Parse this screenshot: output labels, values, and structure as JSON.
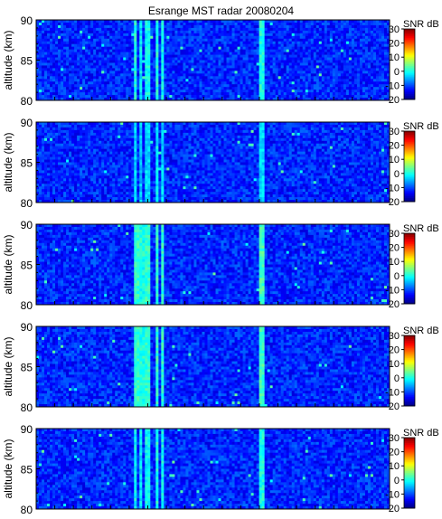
{
  "chart_data": [
    {
      "type": "heatmap",
      "title": "Esrange MST radar 20080204",
      "ylabel": "altitude (km)",
      "ylim": [
        80,
        90
      ],
      "yticks": [
        80,
        85,
        90
      ],
      "colorbar": {
        "label": "SNR dB",
        "range": [
          -20,
          30
        ],
        "ticks": [
          30,
          20,
          10,
          0,
          -10,
          -20
        ]
      },
      "background_snr_db": -12,
      "enhanced_bands": [
        {
          "x_fraction": [
            0.275,
            0.285
          ],
          "snr_db": 0
        },
        {
          "x_fraction": [
            0.29,
            0.3
          ],
          "snr_db": -2
        },
        {
          "x_fraction": [
            0.31,
            0.32
          ],
          "snr_db": -1
        },
        {
          "x_fraction": [
            0.335,
            0.345
          ],
          "snr_db": 0
        },
        {
          "x_fraction": [
            0.355,
            0.365
          ],
          "snr_db": -1
        },
        {
          "x_fraction": [
            0.63,
            0.645
          ],
          "snr_db": 0
        }
      ]
    },
    {
      "type": "heatmap",
      "ylabel": "altitude (km)",
      "ylim": [
        80,
        90
      ],
      "yticks": [
        80,
        85,
        90
      ],
      "colorbar": {
        "label": "SNR dB",
        "range": [
          -20,
          30
        ],
        "ticks": [
          30,
          20,
          10,
          0,
          -10,
          -20
        ]
      },
      "background_snr_db": -12,
      "enhanced_bands": [
        {
          "x_fraction": [
            0.275,
            0.285
          ],
          "snr_db": -3
        },
        {
          "x_fraction": [
            0.29,
            0.3
          ],
          "snr_db": -4
        },
        {
          "x_fraction": [
            0.31,
            0.32
          ],
          "snr_db": -3
        },
        {
          "x_fraction": [
            0.335,
            0.345
          ],
          "snr_db": -2
        },
        {
          "x_fraction": [
            0.355,
            0.365
          ],
          "snr_db": -3
        },
        {
          "x_fraction": [
            0.63,
            0.645
          ],
          "snr_db": -3
        }
      ]
    },
    {
      "type": "heatmap",
      "ylabel": "altitude (km)",
      "ylim": [
        80,
        90
      ],
      "yticks": [
        80,
        85,
        90
      ],
      "colorbar": {
        "label": "SNR dB",
        "range": [
          -20,
          30
        ],
        "ticks": [
          30,
          20,
          10,
          0,
          -10,
          -20
        ]
      },
      "background_snr_db": -12,
      "enhanced_bands": [
        {
          "x_fraction": [
            0.275,
            0.29
          ],
          "snr_db": 1
        },
        {
          "x_fraction": [
            0.295,
            0.305
          ],
          "snr_db": 0
        },
        {
          "x_fraction": [
            0.31,
            0.325
          ],
          "snr_db": 1
        },
        {
          "x_fraction": [
            0.335,
            0.345
          ],
          "snr_db": 1
        },
        {
          "x_fraction": [
            0.355,
            0.365
          ],
          "snr_db": 1
        },
        {
          "x_fraction": [
            0.63,
            0.645
          ],
          "snr_db": 2
        }
      ]
    },
    {
      "type": "heatmap",
      "ylabel": "altitude (km)",
      "ylim": [
        80,
        90
      ],
      "yticks": [
        80,
        85,
        90
      ],
      "colorbar": {
        "label": "SNR dB",
        "range": [
          -20,
          30
        ],
        "ticks": [
          30,
          20,
          10,
          0,
          -10,
          -20
        ]
      },
      "background_snr_db": -12,
      "enhanced_bands": [
        {
          "x_fraction": [
            0.275,
            0.29
          ],
          "snr_db": 1
        },
        {
          "x_fraction": [
            0.295,
            0.305
          ],
          "snr_db": 0
        },
        {
          "x_fraction": [
            0.31,
            0.325
          ],
          "snr_db": 1
        },
        {
          "x_fraction": [
            0.335,
            0.345
          ],
          "snr_db": 1
        },
        {
          "x_fraction": [
            0.355,
            0.365
          ],
          "snr_db": 1
        },
        {
          "x_fraction": [
            0.63,
            0.645
          ],
          "snr_db": 2
        }
      ]
    },
    {
      "type": "heatmap",
      "ylabel": "altitude (km)",
      "ylim": [
        80,
        90
      ],
      "yticks": [
        80,
        85,
        90
      ],
      "colorbar": {
        "label": "SNR dB",
        "range": [
          -20,
          30
        ],
        "ticks": [
          30,
          20,
          10,
          0,
          -10,
          -20
        ]
      },
      "background_snr_db": -12,
      "enhanced_bands": [
        {
          "x_fraction": [
            0.275,
            0.285
          ],
          "snr_db": -1
        },
        {
          "x_fraction": [
            0.29,
            0.3
          ],
          "snr_db": -2
        },
        {
          "x_fraction": [
            0.31,
            0.32
          ],
          "snr_db": -1
        },
        {
          "x_fraction": [
            0.335,
            0.345
          ],
          "snr_db": 0
        },
        {
          "x_fraction": [
            0.355,
            0.365
          ],
          "snr_db": -1
        },
        {
          "x_fraction": [
            0.63,
            0.645
          ],
          "snr_db": 0
        }
      ]
    }
  ]
}
